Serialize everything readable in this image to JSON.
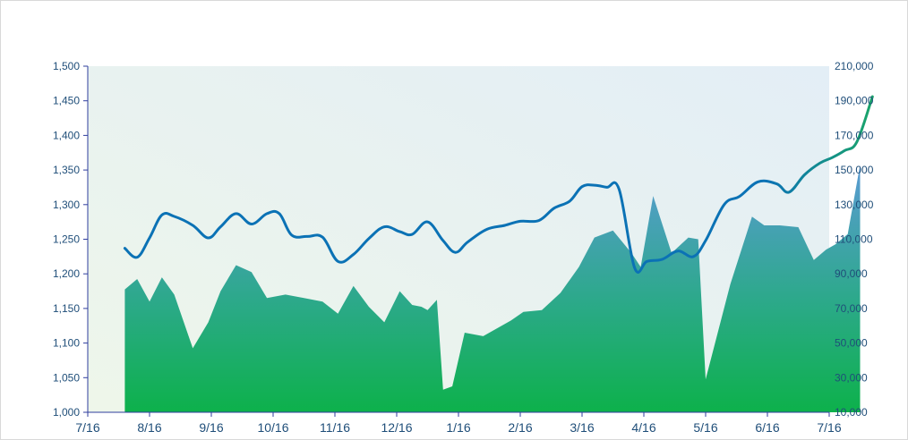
{
  "chart_data": {
    "type": "area",
    "title": "",
    "xlabel": "",
    "ylabel": "",
    "x_axis": {
      "tick_labels": [
        "7/16",
        "8/16",
        "9/16",
        "10/16",
        "11/16",
        "12/16",
        "1/16",
        "2/16",
        "3/16",
        "4/16",
        "5/16",
        "6/16",
        "7/16"
      ]
    },
    "y_left": {
      "range": [
        1000,
        1500
      ],
      "tick_labels": [
        "1,000",
        "1,050",
        "1,100",
        "1,150",
        "1,200",
        "1,250",
        "1,300",
        "1,350",
        "1,400",
        "1,450",
        "1,500"
      ]
    },
    "y_right": {
      "range": [
        10000,
        210000
      ],
      "tick_labels": [
        "10,000",
        "30,000",
        "50,000",
        "70,000",
        "90,000",
        "110,000",
        "130,000",
        "150,000",
        "170,000",
        "190,000",
        "210,000"
      ]
    },
    "grid": false,
    "legend": "none",
    "series": [
      {
        "kind": "area",
        "axis": "right",
        "color_top": "#5b9bd5",
        "color_bottom": "#0db14b",
        "x": [
          0.6,
          0.8,
          1.0,
          1.2,
          1.4,
          1.7,
          1.95,
          2.15,
          2.4,
          2.65,
          2.9,
          3.2,
          3.5,
          3.8,
          4.05,
          4.3,
          4.55,
          4.8,
          5.05,
          5.25,
          5.4,
          5.5,
          5.65,
          5.75,
          5.9,
          6.1,
          6.4,
          6.85,
          7.05,
          7.35,
          7.65,
          7.95,
          8.2,
          8.5,
          8.8,
          8.95,
          9.15,
          9.45,
          9.72,
          9.88,
          10.0,
          10.4,
          10.75,
          10.95,
          11.2,
          11.5,
          11.75,
          11.95,
          12.1,
          12.3,
          12.5
        ],
        "values": [
          81000,
          87000,
          74000,
          88000,
          78000,
          47000,
          62000,
          80000,
          95000,
          91000,
          76000,
          78000,
          76000,
          74000,
          67000,
          83000,
          71000,
          62000,
          80000,
          72000,
          71000,
          69000,
          75000,
          23000,
          25000,
          56000,
          54000,
          63000,
          68000,
          69000,
          79000,
          94000,
          111000,
          115000,
          102000,
          94000,
          135000,
          102000,
          111000,
          110000,
          29000,
          84000,
          123000,
          118000,
          118000,
          117000,
          98000,
          104000,
          107000,
          113000,
          153000
        ]
      },
      {
        "kind": "line",
        "axis": "left",
        "color": "#0b72b5",
        "end_color": "#1aa56a",
        "x": [
          0.6,
          0.8,
          1.0,
          1.2,
          1.4,
          1.7,
          1.95,
          2.15,
          2.4,
          2.65,
          2.9,
          3.1,
          3.3,
          3.55,
          3.8,
          4.05,
          4.3,
          4.55,
          4.8,
          5.05,
          5.25,
          5.5,
          5.75,
          5.95,
          6.15,
          6.45,
          6.75,
          7.0,
          7.3,
          7.55,
          7.8,
          8.0,
          8.2,
          8.4,
          8.6,
          8.85,
          9.05,
          9.3,
          9.55,
          9.8,
          10.0,
          10.3,
          10.55,
          10.85,
          11.15,
          11.35,
          11.6,
          11.85,
          12.05,
          12.25,
          12.45,
          12.7
        ],
        "values": [
          1237,
          1224,
          1252,
          1285,
          1283,
          1270,
          1252,
          1268,
          1287,
          1272,
          1287,
          1287,
          1256,
          1254,
          1253,
          1218,
          1228,
          1251,
          1268,
          1261,
          1257,
          1275,
          1248,
          1231,
          1246,
          1264,
          1270,
          1276,
          1277,
          1295,
          1305,
          1326,
          1328,
          1325,
          1322,
          1209,
          1218,
          1221,
          1233,
          1225,
          1248,
          1300,
          1312,
          1333,
          1330,
          1318,
          1343,
          1360,
          1368,
          1378,
          1391,
          1456
        ]
      }
    ]
  }
}
